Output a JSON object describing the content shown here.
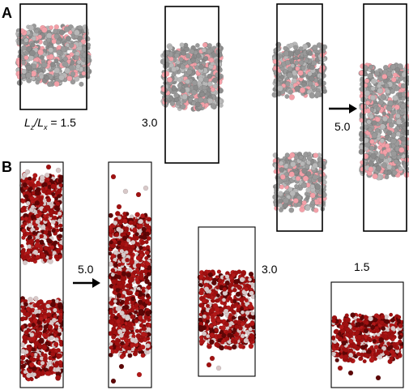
{
  "panels": {
    "a": {
      "letter": "A",
      "ratio_symbol": {
        "L1": "L",
        "sub1": "z",
        "slash": "/",
        "L2": "L",
        "sub2": "x",
        "eq": " = 1.5"
      },
      "labels": [
        "3.0",
        "5.0"
      ]
    },
    "b": {
      "letter": "B",
      "labels": [
        "5.0",
        "3.0",
        "1.5"
      ]
    }
  },
  "colors": {
    "panel_a_gray": "#9a9a9a",
    "panel_a_pink": "#f3a0a8",
    "panel_b_red": "#a01010",
    "panel_b_dark": "#5e0606"
  }
}
